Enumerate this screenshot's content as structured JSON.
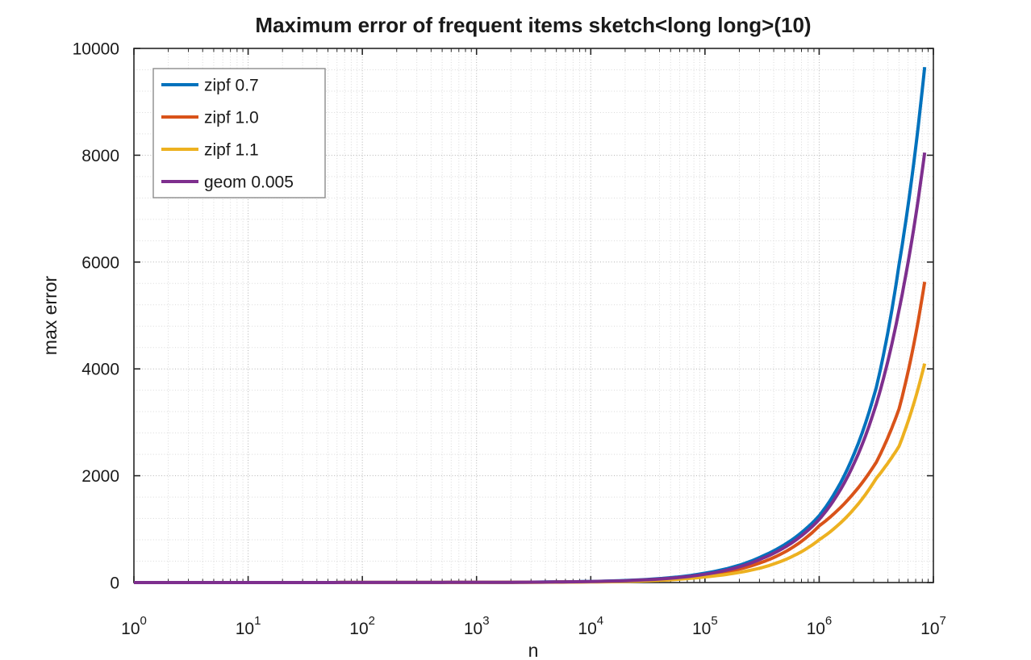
{
  "chart_data": {
    "type": "line",
    "title": "Maximum error of frequent items sketch<long long>(10)",
    "xlabel": "n",
    "ylabel": "max error",
    "x_scale": "log10",
    "xlim": [
      1,
      10000000
    ],
    "ylim": [
      0,
      10000
    ],
    "x_tick_exponents": [
      0,
      1,
      2,
      3,
      4,
      5,
      6,
      7
    ],
    "x_tick_base": "10",
    "y_ticks": [
      0,
      2000,
      4000,
      6000,
      8000,
      10000
    ],
    "y_minor_step": 400,
    "grid": "on",
    "minor_grid": "on",
    "grid_style": "dotted",
    "legend_position": "top-left-inside",
    "x_anchors": [
      1,
      10,
      100,
      1000,
      10000,
      100000,
      316000,
      1000000,
      3160000,
      5000000,
      8390000
    ],
    "series": [
      {
        "name": "zipf 0.7",
        "color": "#0072BD",
        "values": [
          0,
          0,
          1,
          3,
          20,
          175,
          490,
          1250,
          3650,
          5950,
          9650
        ]
      },
      {
        "name": "zipf 1.0",
        "color": "#D95319",
        "values": [
          0,
          0,
          1,
          3,
          15,
          135,
          380,
          1060,
          2250,
          3250,
          5630
        ]
      },
      {
        "name": "zipf 1.1",
        "color": "#EDB120",
        "values": [
          0,
          0,
          1,
          2,
          10,
          105,
          280,
          800,
          1950,
          2550,
          4100
        ]
      },
      {
        "name": "geom 0.005",
        "color": "#7E2F8E",
        "values": [
          0,
          0,
          1,
          3,
          18,
          155,
          450,
          1180,
          3340,
          5100,
          8050
        ]
      }
    ]
  },
  "style_colors": {
    "axis": "#262626",
    "major_grid": "#b3b3b3",
    "minor_grid": "#d9d9d9",
    "legend_border": "#8c8c8c",
    "legend_background": "#ffffff"
  }
}
